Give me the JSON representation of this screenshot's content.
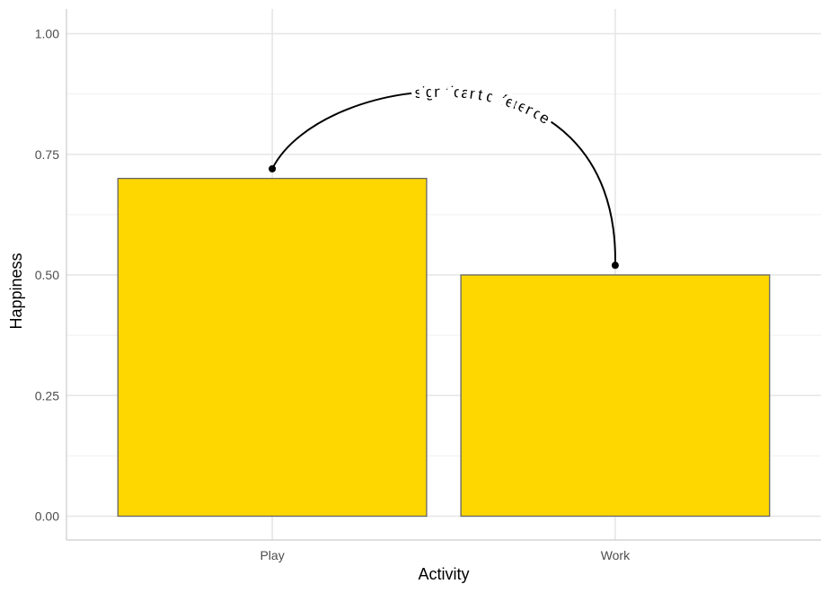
{
  "chart_data": {
    "type": "bar",
    "title": "",
    "xlabel": "Activity",
    "ylabel": "Happiness",
    "categories": [
      "Play",
      "Work"
    ],
    "values": [
      0.7,
      0.5
    ],
    "ylim": [
      0,
      1.05
    ],
    "y_ticks": [
      0.0,
      0.25,
      0.5,
      0.75,
      1.0
    ],
    "y_tick_labels": [
      "0.00",
      "0.25",
      "0.50",
      "0.75",
      "1.00"
    ],
    "grid": true,
    "legend": "none",
    "bar_color": "#FFD700",
    "bar_outline_color": "#666666",
    "annotation": {
      "text": "significant difference",
      "from_category": "Play",
      "from_value": 0.72,
      "to_category": "Work",
      "to_value": 0.52
    }
  }
}
